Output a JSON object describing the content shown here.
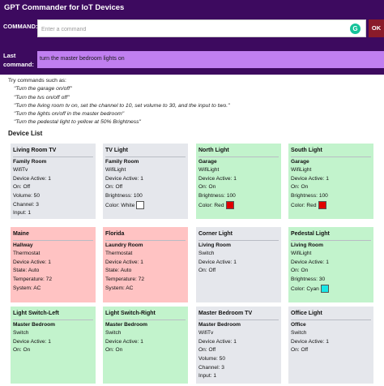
{
  "app": {
    "title": "GPT Commander for IoT Devices"
  },
  "command": {
    "label": "COMMAND:",
    "placeholder": "Enter a command",
    "value": "",
    "ok_label": "OK"
  },
  "last_command": {
    "label": "Last command:",
    "value": "turn the master bedroom lights on"
  },
  "tips": {
    "heading": "Try commands such as:",
    "items": [
      "\"Turn the garage on/off\"",
      "\"Turn the tvs on/off off\"",
      "\"Turn the living room tv on, set the channel to 10, set volume to 30, and the input to two.\"",
      "\"Turn the lights on/off in the master bedroom\"",
      "\"Turn the pedestal light to yellow at 50% Brightness\""
    ]
  },
  "device_list": {
    "title": "Device List",
    "devices": [
      {
        "name": "Living Room TV",
        "room": "Family Room",
        "lines": [
          "WifiTv",
          "Device Active: 1",
          "On: Off",
          "Volume: 50",
          "Channel: 3",
          "Input: 1"
        ],
        "color_label": "",
        "swatch": "",
        "bg": "gray"
      },
      {
        "name": "TV Light",
        "room": "Family Room",
        "lines": [
          "WifiLight",
          "Device Active: 1",
          "On: Off",
          "Brightness: 100"
        ],
        "color_label": "Color: White",
        "swatch": "#ffffff",
        "bg": "gray"
      },
      {
        "name": "North Light",
        "room": "Garage",
        "lines": [
          "WifiLight",
          "Device Active: 1",
          "On: On",
          "Brightness: 100"
        ],
        "color_label": "Color: Red",
        "swatch": "#e00000",
        "bg": "green"
      },
      {
        "name": "South Light",
        "room": "Garage",
        "lines": [
          "WifiLight",
          "Device Active: 1",
          "On: On",
          "Brightness: 100"
        ],
        "color_label": "Color: Red",
        "swatch": "#e00000",
        "bg": "green"
      },
      {
        "name": "Maine",
        "room": "Hallway",
        "lines": [
          "Thermostat",
          "Device Active: 1",
          "State: Auto",
          "Temperature: 72",
          "System: AC"
        ],
        "color_label": "",
        "swatch": "",
        "bg": "red"
      },
      {
        "name": "Florida",
        "room": "Laundry Room",
        "lines": [
          "Thermostat",
          "Device Active: 1",
          "State: Auto",
          "Temperature: 72",
          "System: AC"
        ],
        "color_label": "",
        "swatch": "",
        "bg": "red"
      },
      {
        "name": "Corner Light",
        "room": "Living Room",
        "lines": [
          "Switch",
          "Device Active: 1",
          "On: Off"
        ],
        "color_label": "",
        "swatch": "",
        "bg": "gray"
      },
      {
        "name": "Pedestal Light",
        "room": "Living Room",
        "lines": [
          "WifiLight",
          "Device Active: 1",
          "On: On",
          "Brightness: 30"
        ],
        "color_label": "Color: Cyan",
        "swatch": "#19e6e6",
        "bg": "green"
      },
      {
        "name": "Light Switch-Left",
        "room": "Master Bedroom",
        "lines": [
          "Switch",
          "Device Active: 1",
          "On: On"
        ],
        "color_label": "",
        "swatch": "",
        "bg": "green"
      },
      {
        "name": "Light Switch-Right",
        "room": "Master Bedroom",
        "lines": [
          "Switch",
          "Device Active: 1",
          "On: On"
        ],
        "color_label": "",
        "swatch": "",
        "bg": "green"
      },
      {
        "name": "Master Bedroom TV",
        "room": "Master Bedroom",
        "lines": [
          "WifiTv",
          "Device Active: 1",
          "On: Off",
          "Volume: 50",
          "Channel: 3",
          "Input: 1"
        ],
        "color_label": "",
        "swatch": "",
        "bg": "gray"
      },
      {
        "name": "Office Light",
        "room": "Office",
        "lines": [
          "Switch",
          "Device Active: 1",
          "On: Off"
        ],
        "color_label": "",
        "swatch": "",
        "bg": "gray"
      }
    ]
  }
}
